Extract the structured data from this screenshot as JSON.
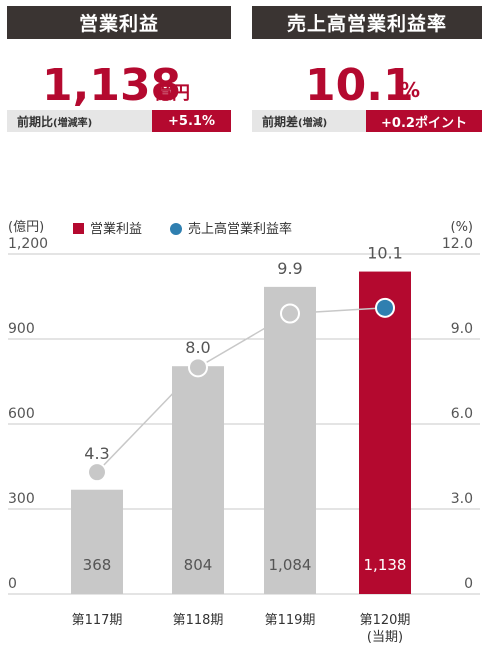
{
  "left_kpi": {
    "header": "営業利益",
    "value": "1,138",
    "unit": "億円",
    "sub_label": "前期比",
    "sub_label_note": "(増減率)",
    "badge": "+5.1%"
  },
  "right_kpi": {
    "header": "売上高営業利益率",
    "value": "10.1",
    "unit": "%",
    "sub_label": "前期差",
    "sub_label_note": "(増減)",
    "badge": "+0.2ポイント"
  },
  "chart_data": {
    "type": "bar",
    "categories": [
      "第117期",
      "第118期",
      "第119期",
      "第120期"
    ],
    "category_sublabels": [
      "",
      "",
      "",
      "(当期)"
    ],
    "series": [
      {
        "name": "営業利益",
        "kind": "bar",
        "axis": "left",
        "values": [
          368,
          804,
          1084,
          1138
        ],
        "labels": [
          "368",
          "804",
          "1,084",
          "1,138"
        ]
      },
      {
        "name": "売上高営業利益率",
        "kind": "line",
        "axis": "right",
        "values": [
          4.3,
          8.0,
          9.9,
          10.1
        ],
        "labels": [
          "4.3",
          "8.0",
          "9.9",
          "10.1"
        ]
      }
    ],
    "left_axis": {
      "unit": "(億円)",
      "ylim": [
        0,
        1200
      ],
      "ticks": [
        "0",
        "300",
        "600",
        "900",
        "1,200"
      ]
    },
    "right_axis": {
      "unit": "(%)",
      "ylim": [
        0,
        12
      ],
      "ticks": [
        "0",
        "3.0",
        "6.0",
        "9.0",
        "12.0"
      ]
    },
    "legend_position": "top-left",
    "colors": {
      "bar": "#c8c8c8",
      "bar_highlight": "#b4092f",
      "line": "#c8c8c8",
      "line_highlight": "#2f7fb0",
      "accent": "#b4092f"
    }
  }
}
